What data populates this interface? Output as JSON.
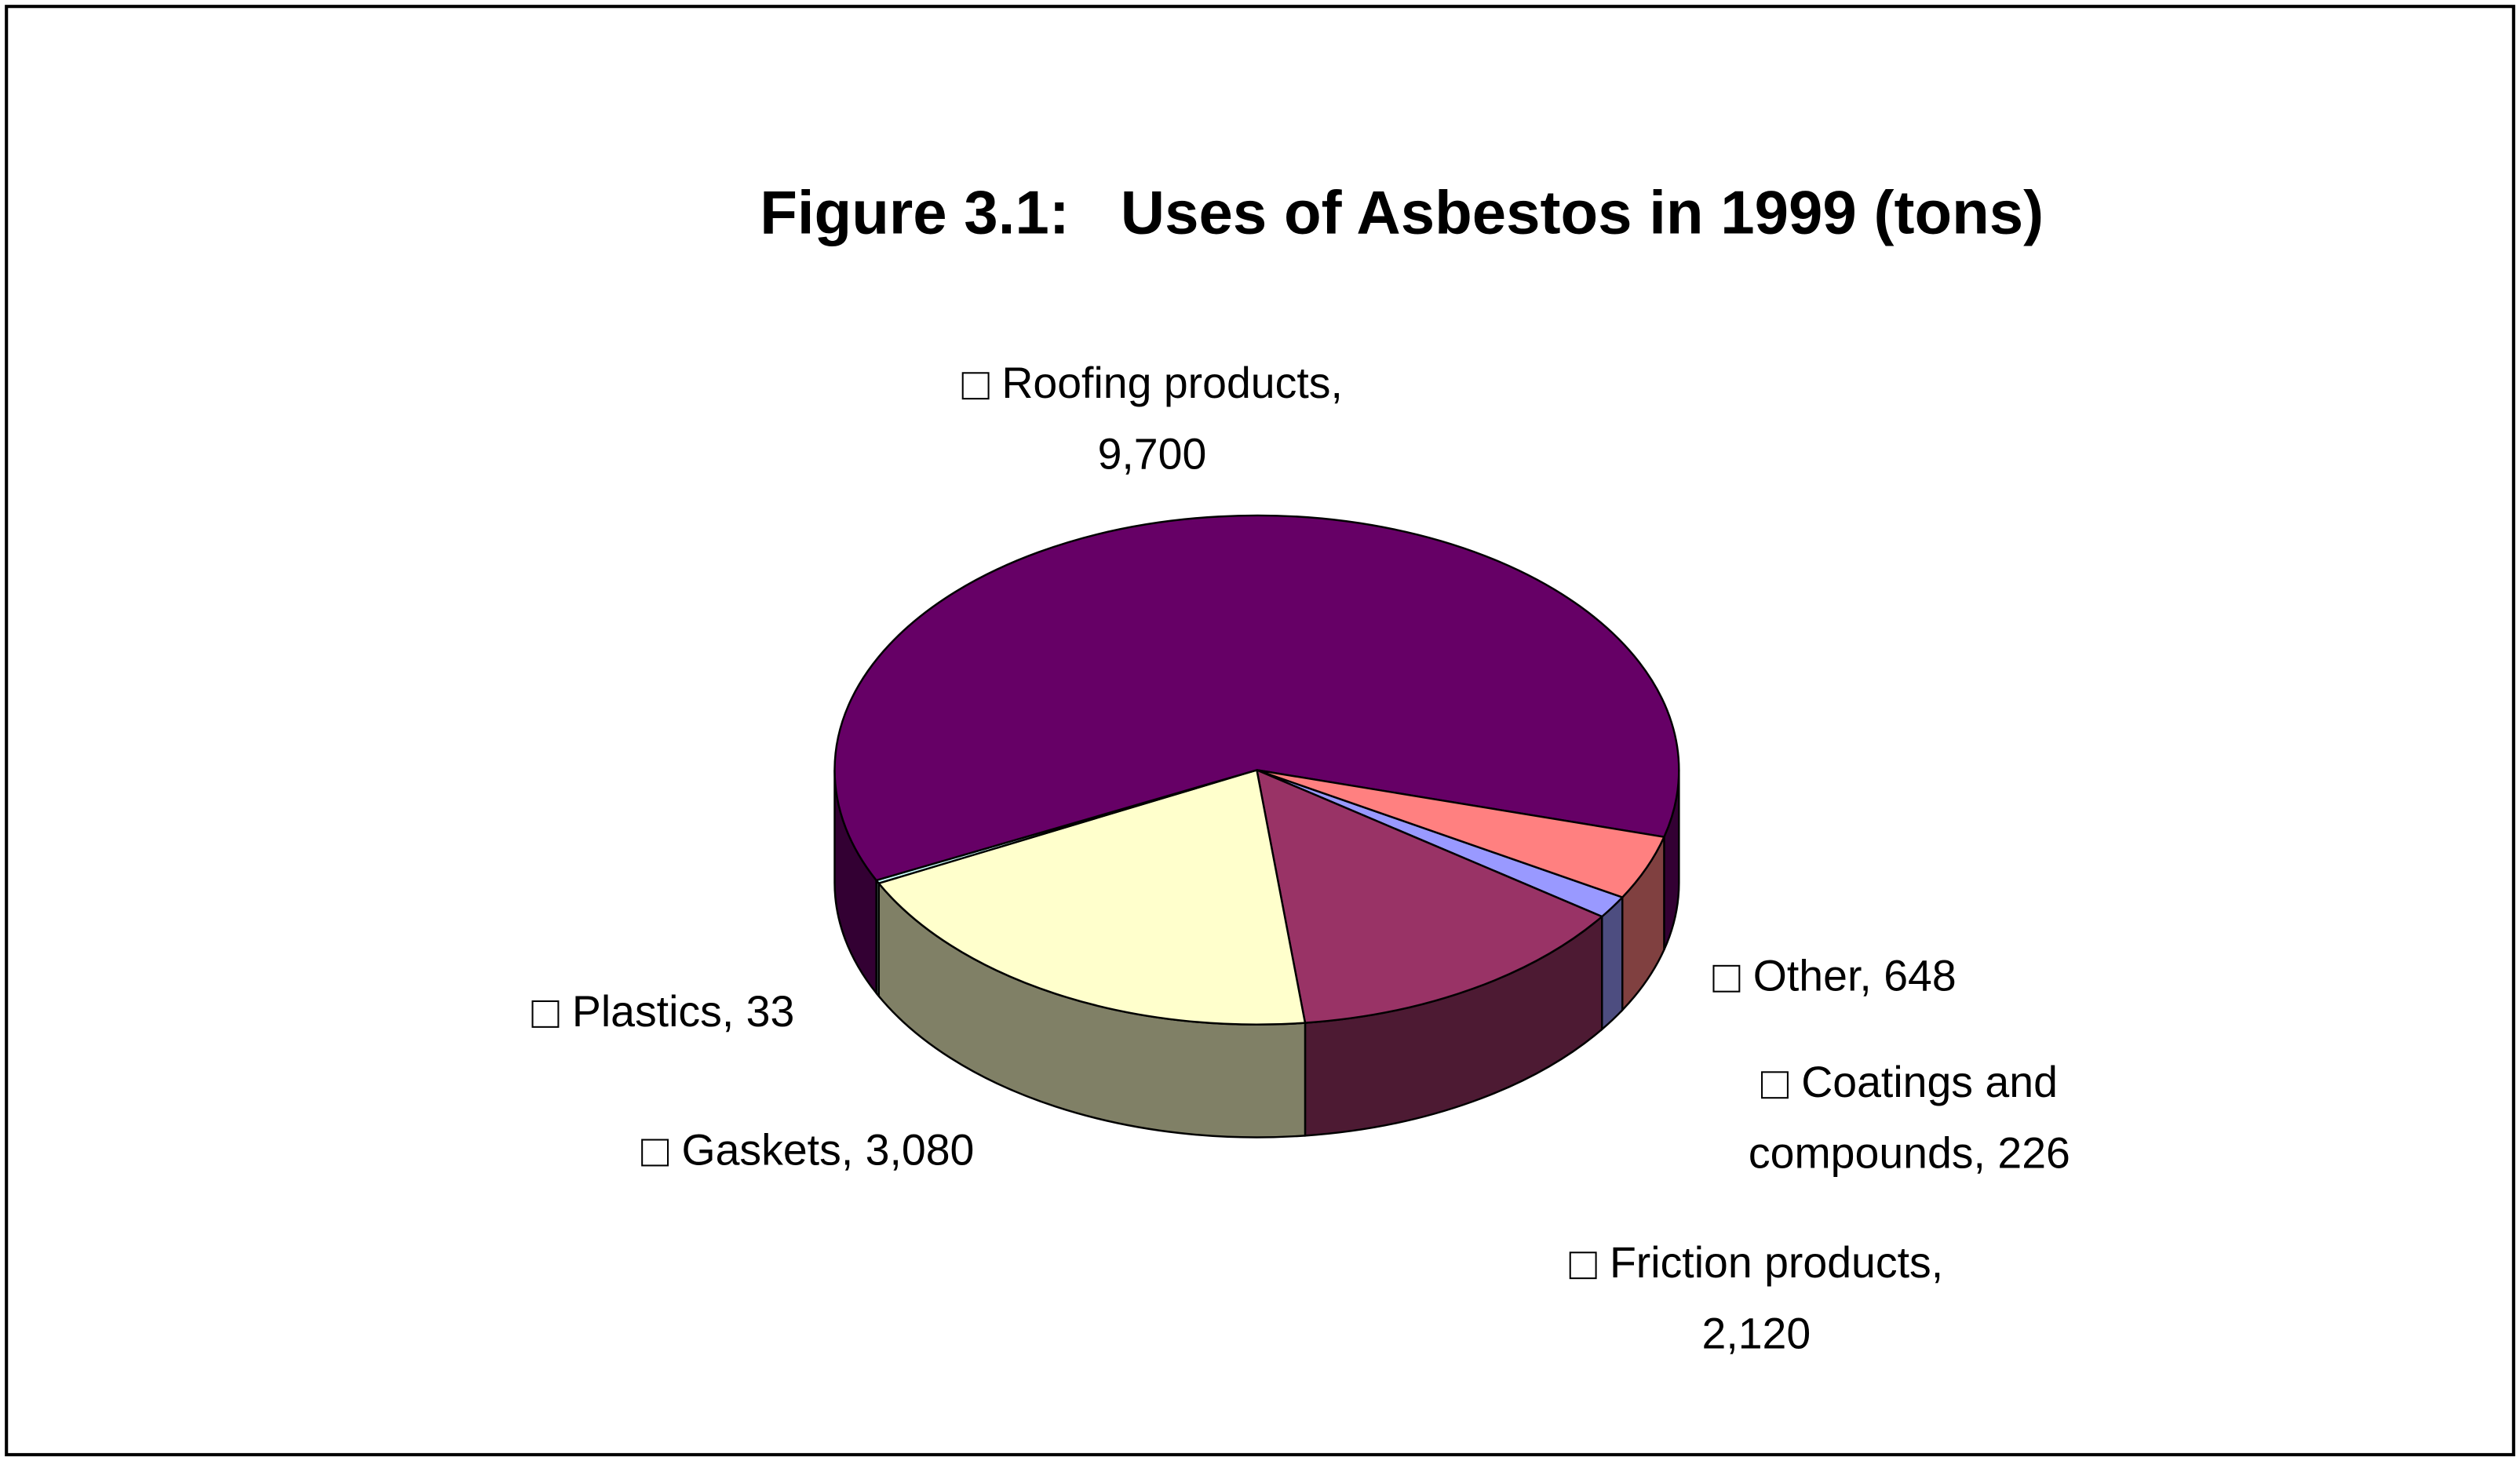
{
  "chart_data": {
    "type": "pie3d",
    "title": "Figure 3.1:   Uses of Asbestos in 1999 (tons)",
    "categories": [
      "Coatings and compounds",
      "Friction products",
      "Gaskets",
      "Plastics",
      "Roofing products",
      "Other"
    ],
    "values": [
      226,
      2120,
      3080,
      33,
      9700,
      648
    ],
    "value_labels": [
      "226",
      "2,120",
      "3,080",
      "33",
      "9,700",
      "648"
    ],
    "label_separator": ", ",
    "colors": [
      "#9999FF",
      "#993366",
      "#FFFFCC",
      "#CCFFFF",
      "#660066",
      "#FF8080"
    ]
  }
}
